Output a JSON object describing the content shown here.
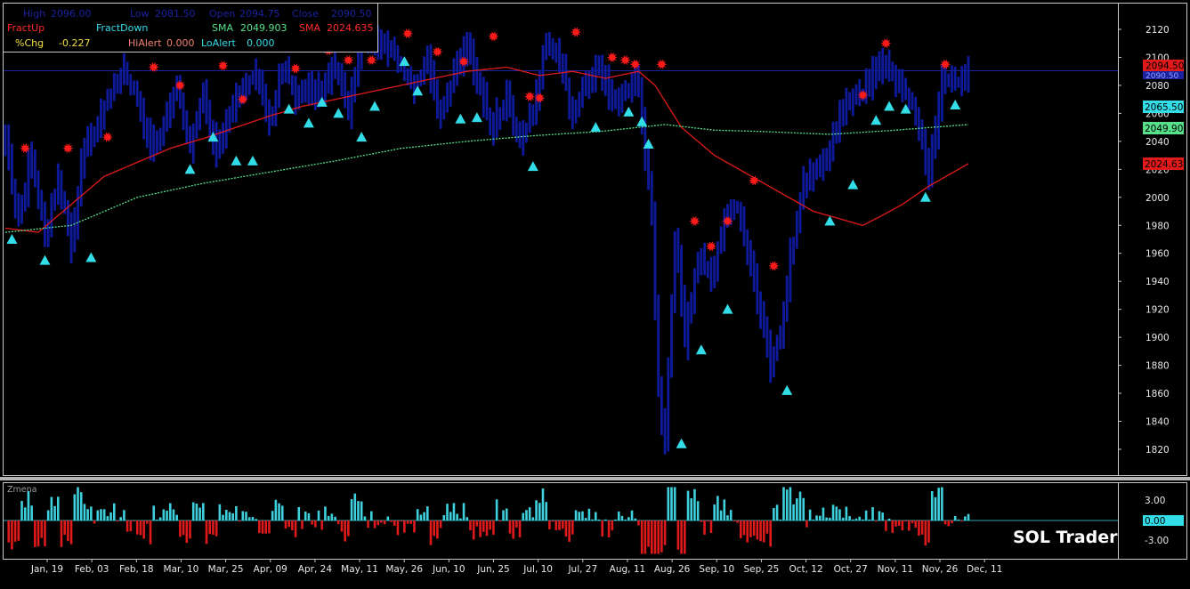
{
  "info_panel": {
    "high_label": "High",
    "high_value": "2096.00",
    "low_label": "Low",
    "low_value": "2081.50",
    "open_label": "Open",
    "open_value": "2094.75",
    "close_label": "Close",
    "close_value": "2090.50",
    "fractup_label": "FractUp",
    "fractdown_label": "FractDown",
    "sma1_label": "SMA",
    "sma1_value": "2049.903",
    "sma2_label": "SMA",
    "sma2_value": "2024.635",
    "pchg_label": "%Chg",
    "pchg_value": "-0.227",
    "hialert_label": "HiAlert",
    "hialert_value": "0.000",
    "loalert_label": "LoAlert",
    "loalert_value": "0.000"
  },
  "price_tags": {
    "last": "2094.50",
    "close": "2090.50",
    "fract": "2065.50",
    "sma1": "2049.90",
    "sma2": "2024.63"
  },
  "lower_panel": {
    "title": "Zmena",
    "ticks": [
      "3.00",
      "0.00",
      "-3.00"
    ]
  },
  "watermark": "SOL Trader",
  "colors": {
    "bars": "#0d1a9c",
    "fractal_up": "#ff1a1a",
    "fractal_down": "#33dde8",
    "sma_fast": "#56e08a",
    "sma_slow": "#e01a1a",
    "hist_pos": "#3fd0dd",
    "hist_neg": "#e01a1a"
  },
  "chart_data": {
    "type": "ohlc",
    "ylim": [
      1805,
      2140
    ],
    "y_ticks": [
      1820,
      1840,
      1860,
      1880,
      1900,
      1920,
      1940,
      1960,
      1980,
      2000,
      2020,
      2040,
      2060,
      2080,
      2100,
      2120
    ],
    "x_ticks": [
      "Jan, 19",
      "Feb, 03",
      "Feb, 18",
      "Mar, 10",
      "Mar, 25",
      "Apr, 09",
      "Apr, 24",
      "May, 11",
      "May, 26",
      "Jun, 10",
      "Jun, 25",
      "Jul, 10",
      "Jul, 27",
      "Aug, 11",
      "Aug, 26",
      "Sep, 10",
      "Sep, 25",
      "Oct, 12",
      "Oct, 27",
      "Nov, 11",
      "Nov, 26",
      "Dec, 11"
    ],
    "close_anchors": [
      [
        0,
        2040
      ],
      [
        4,
        1985
      ],
      [
        8,
        2030
      ],
      [
        12,
        1972
      ],
      [
        16,
        2015
      ],
      [
        20,
        1968
      ],
      [
        24,
        2035
      ],
      [
        28,
        2052
      ],
      [
        32,
        2075
      ],
      [
        36,
        2090
      ],
      [
        40,
        2070
      ],
      [
        44,
        2035
      ],
      [
        48,
        2050
      ],
      [
        52,
        2080
      ],
      [
        56,
        2038
      ],
      [
        60,
        2070
      ],
      [
        64,
        2034
      ],
      [
        68,
        2060
      ],
      [
        72,
        2078
      ],
      [
        76,
        2083
      ],
      [
        80,
        2055
      ],
      [
        84,
        2095
      ],
      [
        88,
        2070
      ],
      [
        92,
        2080
      ],
      [
        96,
        2075
      ],
      [
        100,
        2095
      ],
      [
        104,
        2065
      ],
      [
        108,
        2112
      ],
      [
        112,
        2115
      ],
      [
        116,
        2108
      ],
      [
        120,
        2095
      ],
      [
        124,
        2080
      ],
      [
        128,
        2098
      ],
      [
        132,
        2060
      ],
      [
        136,
        2090
      ],
      [
        140,
        2108
      ],
      [
        144,
        2075
      ],
      [
        148,
        2050
      ],
      [
        152,
        2075
      ],
      [
        156,
        2040
      ],
      [
        160,
        2060
      ],
      [
        164,
        2112
      ],
      [
        168,
        2096
      ],
      [
        172,
        2060
      ],
      [
        176,
        2078
      ],
      [
        180,
        2092
      ],
      [
        184,
        2065
      ],
      [
        188,
        2075
      ],
      [
        192,
        2085
      ],
      [
        194,
        2030
      ],
      [
        196,
        1990
      ],
      [
        198,
        1860
      ],
      [
        200,
        1830
      ],
      [
        203,
        1975
      ],
      [
        206,
        1900
      ],
      [
        210,
        1960
      ],
      [
        214,
        1940
      ],
      [
        218,
        1985
      ],
      [
        222,
        1995
      ],
      [
        226,
        1950
      ],
      [
        229,
        1920
      ],
      [
        232,
        1880
      ],
      [
        235,
        1900
      ],
      [
        238,
        1960
      ],
      [
        242,
        2010
      ],
      [
        246,
        2020
      ],
      [
        250,
        2035
      ],
      [
        254,
        2060
      ],
      [
        258,
        2075
      ],
      [
        262,
        2080
      ],
      [
        266,
        2100
      ],
      [
        270,
        2080
      ],
      [
        274,
        2070
      ],
      [
        278,
        2045
      ],
      [
        280,
        2015
      ],
      [
        284,
        2085
      ],
      [
        287,
        2080
      ],
      [
        292,
        2090
      ]
    ],
    "sma_fast": [
      [
        0,
        1975
      ],
      [
        20,
        1980
      ],
      [
        40,
        2000
      ],
      [
        60,
        2010
      ],
      [
        80,
        2018
      ],
      [
        100,
        2026
      ],
      [
        120,
        2035
      ],
      [
        140,
        2040
      ],
      [
        160,
        2044
      ],
      [
        180,
        2047
      ],
      [
        200,
        2052
      ],
      [
        215,
        2048
      ],
      [
        230,
        2047
      ],
      [
        250,
        2045
      ],
      [
        270,
        2048
      ],
      [
        292,
        2052
      ]
    ],
    "sma_slow": [
      [
        0,
        1978
      ],
      [
        10,
        1975
      ],
      [
        20,
        1995
      ],
      [
        30,
        2015
      ],
      [
        40,
        2025
      ],
      [
        50,
        2035
      ],
      [
        60,
        2042
      ],
      [
        70,
        2050
      ],
      [
        80,
        2058
      ],
      [
        90,
        2065
      ],
      [
        100,
        2070
      ],
      [
        110,
        2075
      ],
      [
        120,
        2080
      ],
      [
        130,
        2085
      ],
      [
        140,
        2090
      ],
      [
        152,
        2093
      ],
      [
        162,
        2087
      ],
      [
        172,
        2090
      ],
      [
        182,
        2085
      ],
      [
        192,
        2090
      ],
      [
        197,
        2080
      ],
      [
        205,
        2050
      ],
      [
        215,
        2030
      ],
      [
        230,
        2010
      ],
      [
        245,
        1990
      ],
      [
        260,
        1980
      ],
      [
        265,
        1986
      ],
      [
        272,
        1995
      ],
      [
        280,
        2008
      ],
      [
        292,
        2024
      ]
    ],
    "fractal_up": [
      [
        6,
        2035
      ],
      [
        19,
        2035
      ],
      [
        31,
        2043
      ],
      [
        45,
        2093
      ],
      [
        53,
        2080
      ],
      [
        66,
        2094
      ],
      [
        72,
        2070
      ],
      [
        88,
        2092
      ],
      [
        98,
        2105
      ],
      [
        104,
        2098
      ],
      [
        111,
        2098
      ],
      [
        122,
        2117
      ],
      [
        131,
        2104
      ],
      [
        139,
        2097
      ],
      [
        148,
        2115
      ],
      [
        159,
        2072
      ],
      [
        162,
        2071
      ],
      [
        173,
        2118
      ],
      [
        184,
        2100
      ],
      [
        188,
        2098
      ],
      [
        191,
        2095
      ],
      [
        199,
        2095
      ],
      [
        209,
        1983
      ],
      [
        214,
        1965
      ],
      [
        219,
        1983
      ],
      [
        227,
        2012
      ],
      [
        233,
        1951
      ],
      [
        260,
        2073
      ],
      [
        267,
        2110
      ],
      [
        285,
        2095
      ]
    ],
    "fractal_down": [
      [
        2,
        1970
      ],
      [
        12,
        1955
      ],
      [
        26,
        1957
      ],
      [
        56,
        2020
      ],
      [
        63,
        2043
      ],
      [
        70,
        2026
      ],
      [
        75,
        2026
      ],
      [
        86,
        2063
      ],
      [
        92,
        2053
      ],
      [
        96,
        2068
      ],
      [
        101,
        2060
      ],
      [
        108,
        2043
      ],
      [
        112,
        2065
      ],
      [
        121,
        2097
      ],
      [
        125,
        2076
      ],
      [
        138,
        2056
      ],
      [
        143,
        2057
      ],
      [
        160,
        2022
      ],
      [
        179,
        2050
      ],
      [
        189,
        2061
      ],
      [
        193,
        2054
      ],
      [
        195,
        2038
      ],
      [
        205,
        1824
      ],
      [
        211,
        1891
      ],
      [
        219,
        1920
      ],
      [
        237,
        1862
      ],
      [
        250,
        1983
      ],
      [
        257,
        2009
      ],
      [
        264,
        2055
      ],
      [
        268,
        2065
      ],
      [
        273,
        2063
      ],
      [
        279,
        2000
      ],
      [
        288,
        2066
      ]
    ]
  }
}
